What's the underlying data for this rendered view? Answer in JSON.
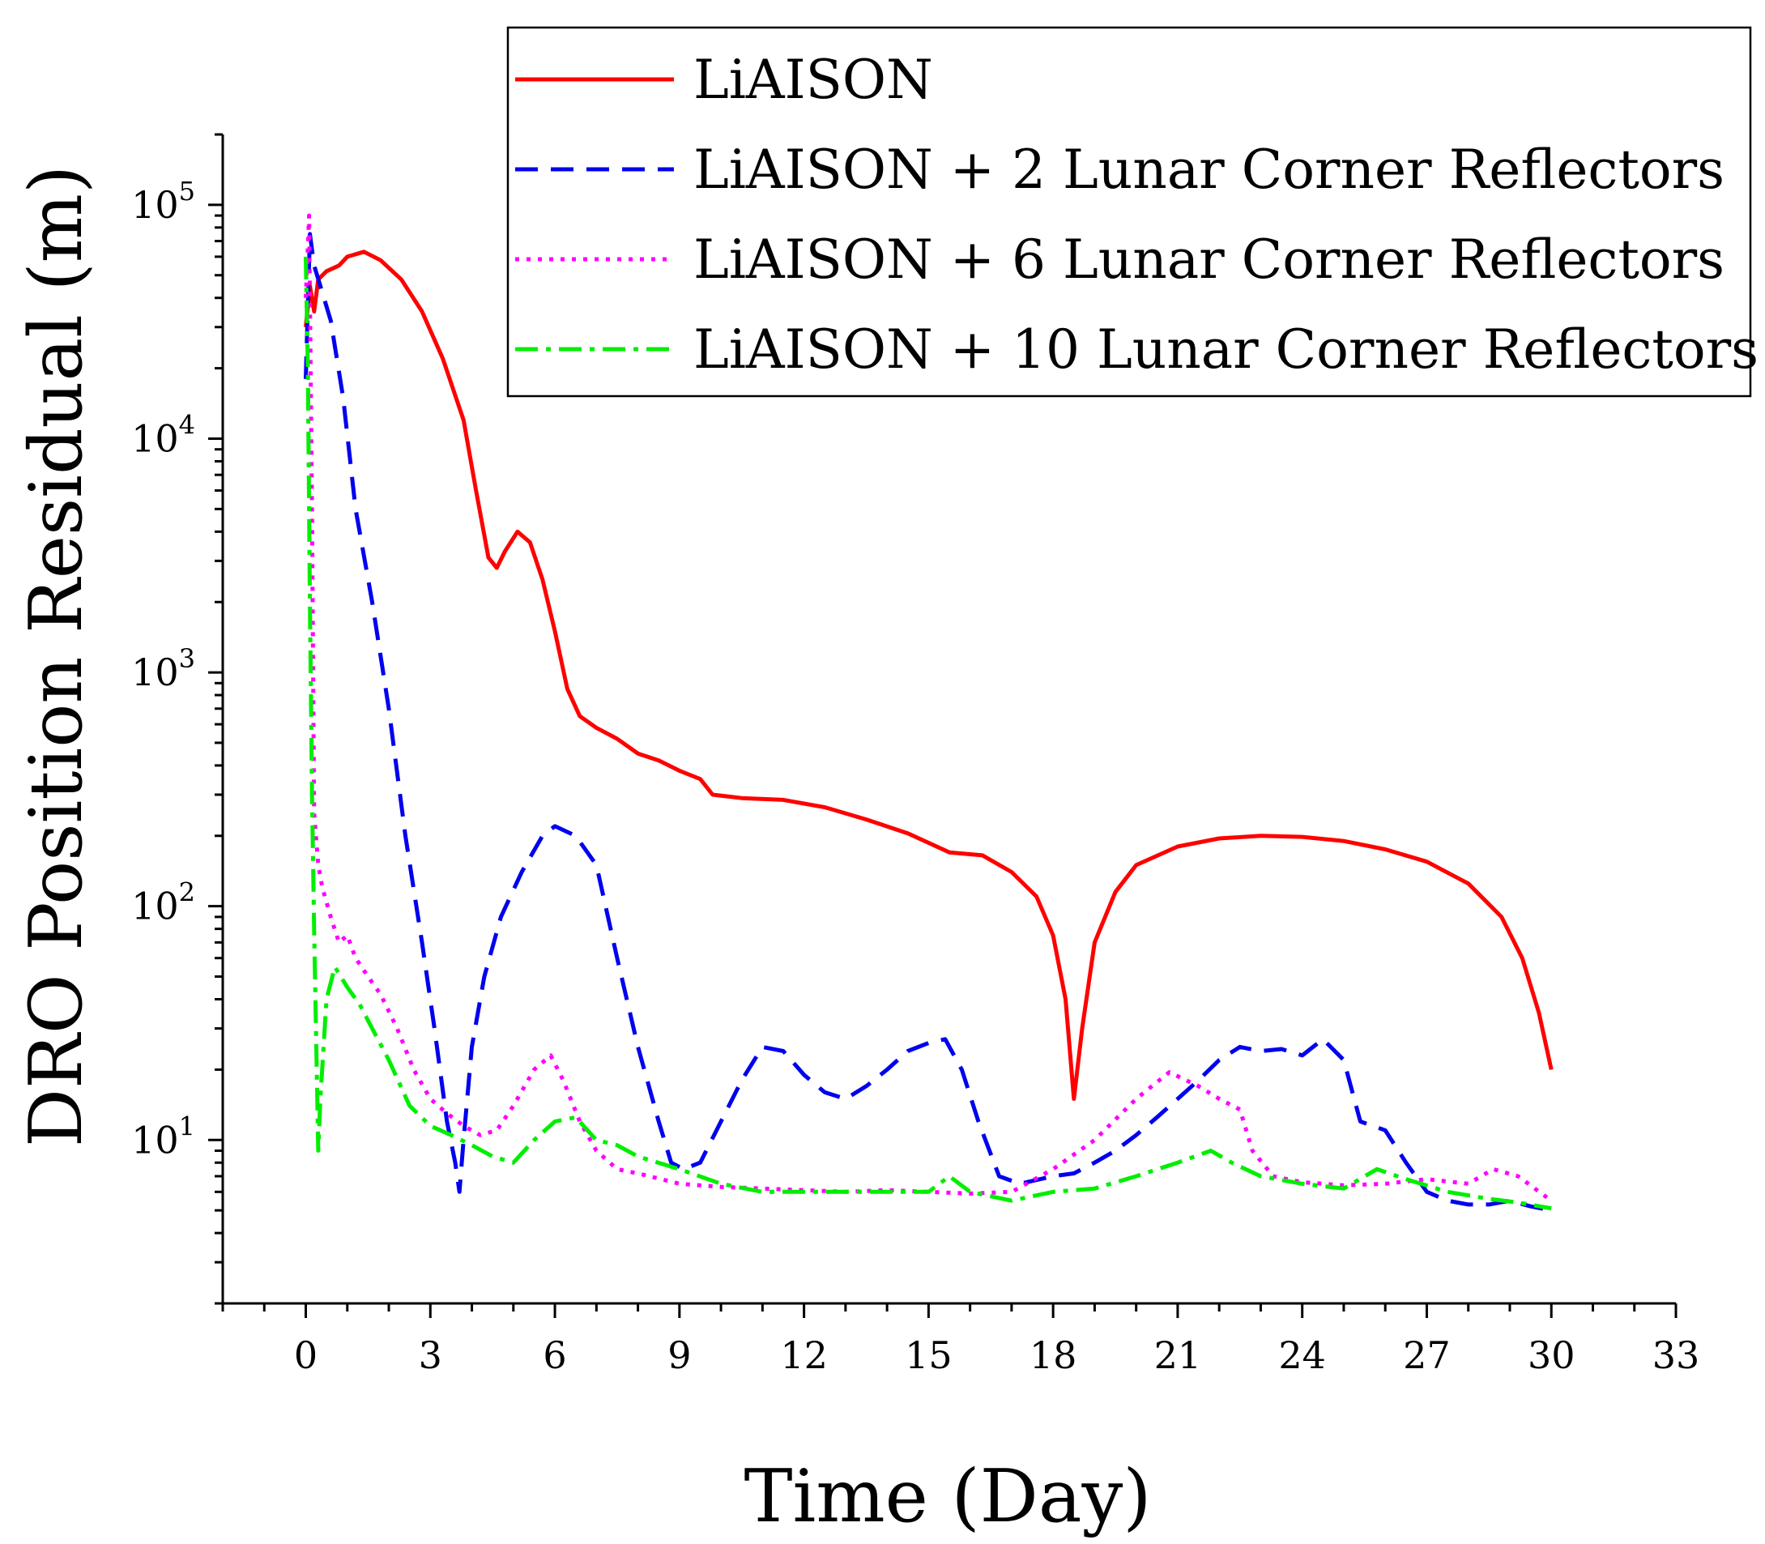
{
  "chart_data": {
    "type": "line",
    "xlabel": "Time (Day)",
    "ylabel": "DRO Position Residual (m)",
    "yscale": "log",
    "xlim": [
      -2,
      33
    ],
    "ylim": [
      2,
      200000
    ],
    "xticks": [
      0,
      3,
      6,
      9,
      12,
      15,
      18,
      21,
      24,
      27,
      30,
      33
    ],
    "yticks": [
      {
        "value": 10,
        "base": "10",
        "exp": "1"
      },
      {
        "value": 100,
        "base": "10",
        "exp": "2"
      },
      {
        "value": 1000,
        "base": "10",
        "exp": "3"
      },
      {
        "value": 10000,
        "base": "10",
        "exp": "4"
      },
      {
        "value": 100000,
        "base": "10",
        "exp": "5"
      }
    ],
    "legend_position": "top-right",
    "series": [
      {
        "name": "LiAISON",
        "color": "#ff0000",
        "style": "solid",
        "points": [
          [
            0,
            30000
          ],
          [
            0.1,
            45000
          ],
          [
            0.2,
            35000
          ],
          [
            0.3,
            48000
          ],
          [
            0.5,
            52000
          ],
          [
            0.8,
            55000
          ],
          [
            1.0,
            60000
          ],
          [
            1.4,
            63000
          ],
          [
            1.8,
            58000
          ],
          [
            2.3,
            48000
          ],
          [
            2.8,
            35000
          ],
          [
            3.3,
            22000
          ],
          [
            3.8,
            12000
          ],
          [
            4.1,
            6000
          ],
          [
            4.4,
            3100
          ],
          [
            4.6,
            2800
          ],
          [
            4.8,
            3300
          ],
          [
            5.1,
            4000
          ],
          [
            5.4,
            3600
          ],
          [
            5.7,
            2500
          ],
          [
            6.0,
            1500
          ],
          [
            6.3,
            850
          ],
          [
            6.6,
            650
          ],
          [
            7.0,
            580
          ],
          [
            7.5,
            520
          ],
          [
            8.0,
            450
          ],
          [
            8.5,
            420
          ],
          [
            9.0,
            380
          ],
          [
            9.5,
            350
          ],
          [
            9.8,
            300
          ],
          [
            10.5,
            290
          ],
          [
            11.5,
            285
          ],
          [
            12.5,
            265
          ],
          [
            13.5,
            235
          ],
          [
            14.5,
            205
          ],
          [
            15.5,
            170
          ],
          [
            16.3,
            165
          ],
          [
            17.0,
            140
          ],
          [
            17.6,
            110
          ],
          [
            18.0,
            75
          ],
          [
            18.3,
            40
          ],
          [
            18.5,
            15
          ],
          [
            18.7,
            30
          ],
          [
            19.0,
            70
          ],
          [
            19.5,
            115
          ],
          [
            20.0,
            150
          ],
          [
            21.0,
            180
          ],
          [
            22.0,
            195
          ],
          [
            23.0,
            200
          ],
          [
            24.0,
            198
          ],
          [
            25.0,
            190
          ],
          [
            26.0,
            175
          ],
          [
            27.0,
            155
          ],
          [
            28.0,
            125
          ],
          [
            28.8,
            90
          ],
          [
            29.3,
            60
          ],
          [
            29.7,
            35
          ],
          [
            30.0,
            20
          ]
        ]
      },
      {
        "name": "LiAISON + 2 Lunar Corner Reflectors",
        "color": "#0000ee",
        "style": "dashed",
        "points": [
          [
            0,
            18000
          ],
          [
            0.1,
            75000
          ],
          [
            0.2,
            55000
          ],
          [
            0.35,
            45000
          ],
          [
            0.6,
            32000
          ],
          [
            0.9,
            15000
          ],
          [
            1.2,
            5000
          ],
          [
            1.6,
            2000
          ],
          [
            2.0,
            700
          ],
          [
            2.4,
            200
          ],
          [
            2.8,
            70
          ],
          [
            3.1,
            30
          ],
          [
            3.4,
            12
          ],
          [
            3.6,
            8
          ],
          [
            3.7,
            6
          ],
          [
            3.8,
            10
          ],
          [
            4.0,
            25
          ],
          [
            4.3,
            50
          ],
          [
            4.7,
            90
          ],
          [
            5.2,
            140
          ],
          [
            5.7,
            200
          ],
          [
            6.0,
            220
          ],
          [
            6.5,
            200
          ],
          [
            7.0,
            150
          ],
          [
            7.5,
            60
          ],
          [
            8.0,
            25
          ],
          [
            8.5,
            12
          ],
          [
            8.8,
            8
          ],
          [
            9.1,
            7.5
          ],
          [
            9.5,
            8
          ],
          [
            10.0,
            12
          ],
          [
            10.5,
            18
          ],
          [
            11.0,
            25
          ],
          [
            11.5,
            24
          ],
          [
            12.0,
            19
          ],
          [
            12.5,
            16
          ],
          [
            13.0,
            15
          ],
          [
            13.5,
            17
          ],
          [
            14.0,
            20
          ],
          [
            14.5,
            24
          ],
          [
            15.0,
            26
          ],
          [
            15.4,
            27
          ],
          [
            15.8,
            20
          ],
          [
            16.2,
            12
          ],
          [
            16.7,
            7
          ],
          [
            17.2,
            6.5
          ],
          [
            18.0,
            7
          ],
          [
            18.5,
            7.2
          ],
          [
            19.0,
            8
          ],
          [
            19.5,
            9
          ],
          [
            20.0,
            10.5
          ],
          [
            20.5,
            12.5
          ],
          [
            21.0,
            15
          ],
          [
            21.5,
            18
          ],
          [
            22.0,
            22
          ],
          [
            22.5,
            25
          ],
          [
            23.0,
            24
          ],
          [
            23.5,
            24.5
          ],
          [
            24.0,
            23
          ],
          [
            24.5,
            27
          ],
          [
            25.0,
            22
          ],
          [
            25.4,
            12
          ],
          [
            26.0,
            11
          ],
          [
            26.5,
            8
          ],
          [
            27.0,
            6
          ],
          [
            27.5,
            5.5
          ],
          [
            28.0,
            5.3
          ],
          [
            28.5,
            5.3
          ],
          [
            29.0,
            5.5
          ],
          [
            29.5,
            5.2
          ],
          [
            30.0,
            5.0
          ]
        ]
      },
      {
        "name": "LiAISON + 6 Lunar Corner Reflectors",
        "color": "#ff00ff",
        "style": "dotted",
        "points": [
          [
            0,
            40000
          ],
          [
            0.08,
            90000
          ],
          [
            0.15,
            5000
          ],
          [
            0.2,
            250
          ],
          [
            0.3,
            150
          ],
          [
            0.4,
            120
          ],
          [
            0.6,
            90
          ],
          [
            0.8,
            70
          ],
          [
            1.0,
            75
          ],
          [
            1.2,
            60
          ],
          [
            1.5,
            50
          ],
          [
            1.8,
            42
          ],
          [
            2.2,
            30
          ],
          [
            2.6,
            20
          ],
          [
            3.0,
            15
          ],
          [
            3.4,
            13
          ],
          [
            3.8,
            11.5
          ],
          [
            4.2,
            10.5
          ],
          [
            4.6,
            11
          ],
          [
            5.0,
            14
          ],
          [
            5.5,
            20
          ],
          [
            5.9,
            23
          ],
          [
            6.2,
            18
          ],
          [
            6.6,
            12
          ],
          [
            7.0,
            9
          ],
          [
            7.5,
            7.5
          ],
          [
            8.0,
            7.2
          ],
          [
            9.0,
            6.5
          ],
          [
            10,
            6.3
          ],
          [
            11,
            6.2
          ],
          [
            12,
            6.1
          ],
          [
            13,
            6.0
          ],
          [
            14,
            6.1
          ],
          [
            15,
            6.0
          ],
          [
            16,
            5.9
          ],
          [
            17,
            6.0
          ],
          [
            18,
            7.5
          ],
          [
            19,
            10
          ],
          [
            20,
            15
          ],
          [
            20.8,
            19.5
          ],
          [
            21.5,
            17
          ],
          [
            22,
            15
          ],
          [
            22.5,
            13.5
          ],
          [
            22.8,
            9
          ],
          [
            23.3,
            7
          ],
          [
            24,
            6.6
          ],
          [
            25,
            6.4
          ],
          [
            26,
            6.5
          ],
          [
            27,
            6.8
          ],
          [
            28,
            6.5
          ],
          [
            28.6,
            7.5
          ],
          [
            29.2,
            7
          ],
          [
            30,
            5.5
          ]
        ]
      },
      {
        "name": "LiAISON + 10 Lunar Corner Reflectors",
        "color": "#00ee00",
        "style": "dashdot",
        "points": [
          [
            0,
            60000
          ],
          [
            0.05,
            20000
          ],
          [
            0.1,
            2000
          ],
          [
            0.15,
            300
          ],
          [
            0.2,
            80
          ],
          [
            0.3,
            9
          ],
          [
            0.35,
            15
          ],
          [
            0.5,
            40
          ],
          [
            0.7,
            55
          ],
          [
            1.0,
            45
          ],
          [
            1.3,
            38
          ],
          [
            1.6,
            30
          ],
          [
            2.0,
            22
          ],
          [
            2.5,
            14
          ],
          [
            3.0,
            11.5
          ],
          [
            3.5,
            10.5
          ],
          [
            4.0,
            9.5
          ],
          [
            4.5,
            8.5
          ],
          [
            5.0,
            8
          ],
          [
            5.5,
            10
          ],
          [
            6.0,
            12
          ],
          [
            6.5,
            12.5
          ],
          [
            7.0,
            10
          ],
          [
            7.5,
            9.5
          ],
          [
            8.0,
            8.5
          ],
          [
            9.0,
            7.5
          ],
          [
            10,
            6.5
          ],
          [
            11,
            6
          ],
          [
            12,
            6
          ],
          [
            13,
            6
          ],
          [
            14,
            6
          ],
          [
            15,
            6
          ],
          [
            15.5,
            7
          ],
          [
            16,
            6
          ],
          [
            17,
            5.5
          ],
          [
            18,
            6
          ],
          [
            19,
            6.2
          ],
          [
            20,
            7
          ],
          [
            21,
            8
          ],
          [
            21.8,
            9
          ],
          [
            22.3,
            8
          ],
          [
            23,
            7
          ],
          [
            24,
            6.5
          ],
          [
            25,
            6.2
          ],
          [
            25.8,
            7.5
          ],
          [
            26.5,
            6.8
          ],
          [
            27.5,
            6.0
          ],
          [
            28.5,
            5.6
          ],
          [
            29.2,
            5.4
          ],
          [
            30,
            5.1
          ]
        ]
      }
    ]
  }
}
